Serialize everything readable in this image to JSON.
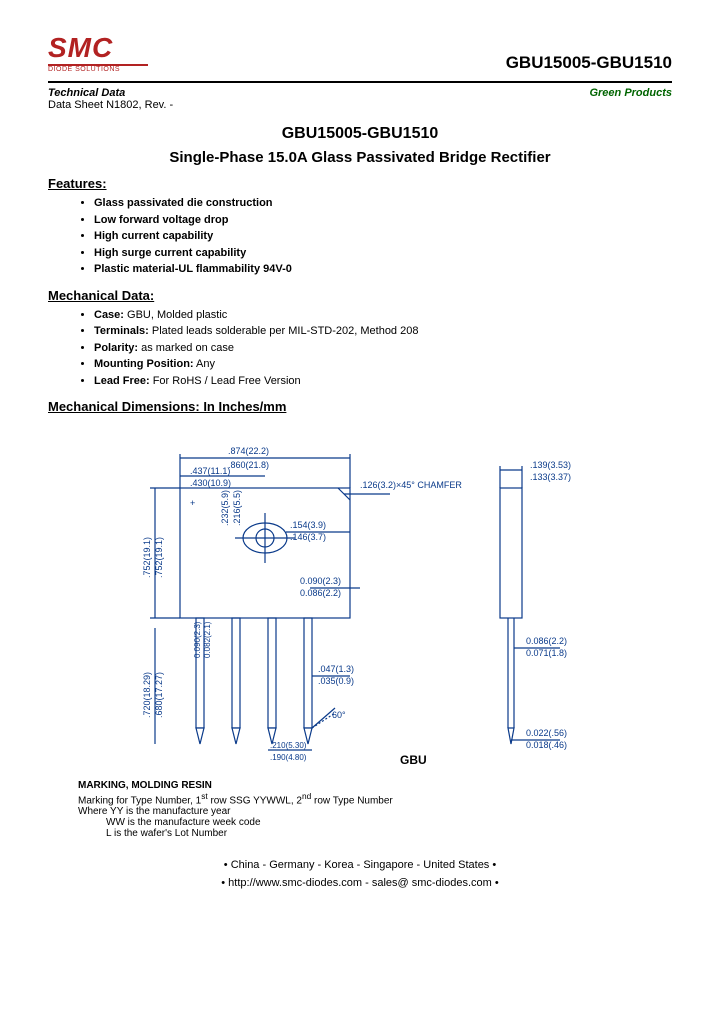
{
  "theme": {
    "brand_color": "#b22222",
    "green_color": "#006400",
    "diagram_color": "#0a3a8a",
    "background": "#ffffff",
    "text_color": "#000000",
    "title_fontsize": 16,
    "body_fontsize": 11
  },
  "logo": {
    "main": "SMC",
    "sub": "DIODE SOLUTIONS"
  },
  "header": {
    "part_range": "GBU15005-GBU1510",
    "technical_data": "Technical Data",
    "green_products": "Green Products",
    "datasheet": "Data Sheet N1802, Rev. -"
  },
  "titles": {
    "part": "GBU15005-GBU1510",
    "product": "Single-Phase 15.0A Glass Passivated Bridge Rectifier"
  },
  "sections": {
    "features_h": "Features:",
    "mechdata_h": "Mechanical Data:",
    "mechdim_h": "Mechanical Dimensions: In Inches/mm"
  },
  "features": [
    "Glass passivated die construction",
    "Low forward voltage drop",
    "High current capability",
    "High surge current capability",
    "Plastic material-UL flammability 94V-0"
  ],
  "mechanical_data": [
    {
      "k": "Case:",
      "v": " GBU, Molded plastic"
    },
    {
      "k": "Terminals:",
      "v": " Plated leads solderable per MIL-STD-202, Method 208"
    },
    {
      "k": "Polarity:",
      "v": " as marked on case"
    },
    {
      "k": "Mounting Position:",
      "v": " Any"
    },
    {
      "k": "Lead Free:",
      "v": " For RoHS / Lead Free Version"
    }
  ],
  "diagram": {
    "package_label": "GBU",
    "chamfer_label": ".126(3.2)×45°\nCHAMFER",
    "angle_label": "60°",
    "dims": {
      "w_outer": ".874(22.2)",
      "w_inner": ".860(21.8)",
      "w_half1": ".437(11.1)",
      "w_half2": ".430(10.9)",
      "h_body1": ".752(19.1)",
      "h_body2": ".752(19.1)",
      "h_lead1": ".720(18.29)",
      "h_lead2": ".680(17.27)",
      "hole_y1": ".232(5.9)",
      "hole_y2": ".216(5.5)",
      "hole_d1": ".154(3.9)",
      "hole_d2": ".146(3.7)",
      "wall1": "0.090(2.3)",
      "wall2": "0.086(2.2)",
      "leadw1": "0.090(2.3)",
      "leadw2": "0.082(2.1)",
      "tip1": ".047(1.3)",
      "tip2": ".035(0.9)",
      "pitch1": ".210(5.30)",
      "pitch2": ".190(4.80)",
      "side_t1": ".139(3.53)",
      "side_t2": ".133(3.37)",
      "side_l1": "0.086(2.2)",
      "side_l2": "0.071(1.8)",
      "side_s1": "0.022(.56)",
      "side_s2": "0.018(.46)"
    }
  },
  "marking": {
    "heading": "MARKING, MOLDING RESIN",
    "line1a": "Marking for Type Number, 1",
    "line1sup1": "st",
    "line1b": " row SSG YYWWL, 2",
    "line1sup2": "nd",
    "line1c": " row Type Number",
    "line2": "Where YY is the manufacture year",
    "line3": "WW is the manufacture week code",
    "line4": "L is the wafer's Lot Number"
  },
  "footer": {
    "countries": "• China  -  Germany  -  Korea  -  Singapore  -  United States •",
    "contact": "• http://www.smc-diodes.com  -  sales@ smc-diodes.com •"
  }
}
